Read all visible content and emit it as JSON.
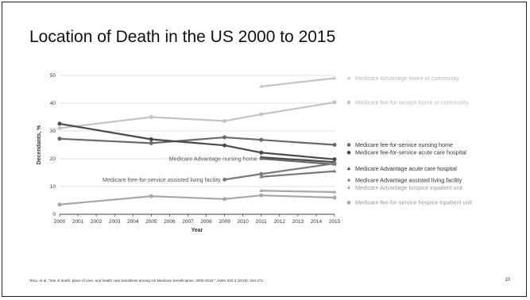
{
  "slide": {
    "title": "Location of Death in the US 2000 to 2015",
    "citation": "Teno, et al. \"Site of death, place of care, and health care transitions among US Medicare beneficiaries, 2000-2015.\" JAMA 320.3 (2018): 264-271.",
    "page_number": "10"
  },
  "chart_data": {
    "type": "line",
    "title": "",
    "xlabel": "Year",
    "ylabel": "Decendants, %",
    "xlim": [
      2000,
      2015
    ],
    "ylim": [
      0,
      50
    ],
    "x_ticks": [
      2000,
      2001,
      2002,
      2003,
      2004,
      2005,
      2006,
      2007,
      2008,
      2009,
      2010,
      2011,
      2012,
      2013,
      2014,
      2015
    ],
    "y_ticks": [
      0,
      10,
      20,
      30,
      40,
      50
    ],
    "grid": "horizontal",
    "legend_placement": "right",
    "series": [
      {
        "name": "Medicare Advantage home or community",
        "marker": "triangle",
        "color": "#c4c4c4",
        "points": [
          [
            2011,
            46
          ],
          [
            2015,
            49
          ]
        ]
      },
      {
        "name": "Medicare fee-for-service home or community",
        "marker": "circle",
        "color": "#c4c4c4",
        "points": [
          [
            2000,
            31
          ],
          [
            2005,
            35
          ],
          [
            2009,
            33.6
          ],
          [
            2011,
            36
          ],
          [
            2015,
            40.3
          ]
        ]
      },
      {
        "name": "Medicare fee-for-service nursing home",
        "marker": "circle",
        "color": "#6a6a6a",
        "points": [
          [
            2000,
            27.2
          ],
          [
            2005,
            25.6
          ],
          [
            2009,
            27.7
          ],
          [
            2011,
            26.8
          ],
          [
            2015,
            25
          ]
        ]
      },
      {
        "name": "Medicare fee-for-service acute care hospital",
        "marker": "circle",
        "color": "#4a4a4a",
        "points": [
          [
            2000,
            32.6
          ],
          [
            2005,
            27
          ],
          [
            2009,
            24.8
          ],
          [
            2011,
            22.2
          ],
          [
            2015,
            19.8
          ]
        ]
      },
      {
        "name": "Medicare Advantage acute care hospital",
        "marker": "triangle",
        "color": "#4a4a4a",
        "points": [
          [
            2011,
            20.5
          ],
          [
            2015,
            18.8
          ]
        ]
      },
      {
        "name": "Medicare Advantage nursing home",
        "marker": "triangle",
        "color": "#6a6a6a",
        "points": [
          [
            2011,
            20
          ],
          [
            2015,
            18
          ]
        ]
      },
      {
        "name": "Medicare fee-for-service assisted living facility",
        "marker": "circle",
        "color": "#7a7a7a",
        "points": [
          [
            2009,
            12.5
          ],
          [
            2011,
            14.5
          ],
          [
            2015,
            18.3
          ]
        ]
      },
      {
        "name": "Medicare Advantage assisted living facility",
        "marker": "triangle",
        "color": "#7a7a7a",
        "points": [
          [
            2011,
            13.5
          ],
          [
            2015,
            15.5
          ]
        ]
      },
      {
        "name": "Medicare Advantage hospice inpatient unit",
        "marker": "triangle",
        "color": "#a8a8a8",
        "points": [
          [
            2011,
            8.5
          ],
          [
            2015,
            8
          ]
        ]
      },
      {
        "name": "Medicare fee-for-service hospice inpatient unit",
        "marker": "circle",
        "color": "#a8a8a8",
        "points": [
          [
            2000,
            3.5
          ],
          [
            2005,
            6.5
          ],
          [
            2009,
            5.5
          ],
          [
            2011,
            6.8
          ],
          [
            2015,
            6
          ]
        ]
      }
    ],
    "legend": [
      {
        "label": "Medicare Advantage home or community",
        "series": 0
      },
      {
        "label": "Medicare fee-for-service home or community",
        "series": 1
      },
      {
        "label": "Medicare fee-for-service nursing home",
        "series": 2
      },
      {
        "label": "Medicare fee-for-service acute care hospital",
        "series": 3
      },
      {
        "label": "Medicare Advantage acute care hospital",
        "series": 4
      },
      {
        "label": "Medicare Advantage assisted living facility",
        "series": 7
      },
      {
        "label": "Medicare Advantage hospice inpatient unit",
        "series": 8
      },
      {
        "label": "Medicare fee-for-service hospice inpatient unit",
        "series": 9
      }
    ],
    "annotations": [
      {
        "text": "Medicare Advantage nursing home",
        "series": 5
      },
      {
        "text": "Medicare free-for-service assisted living facility",
        "series": 6
      }
    ]
  }
}
